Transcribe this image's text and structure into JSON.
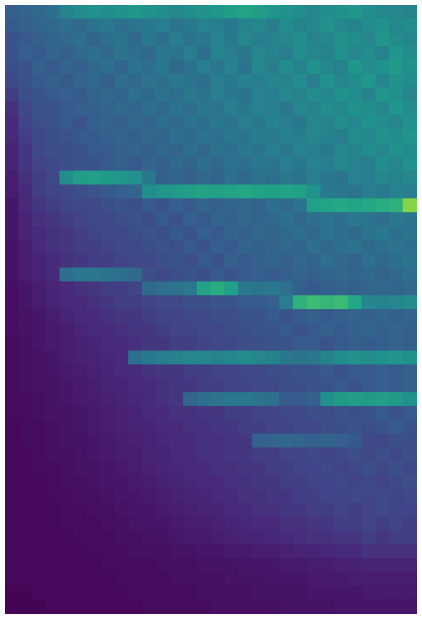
{
  "chart_data": {
    "type": "heatmap",
    "tick_labels": false,
    "zlim": [
      0,
      100
    ],
    "cells": [
      [
        30,
        32,
        34,
        36,
        44,
        48,
        50,
        48,
        50,
        52,
        50,
        48,
        46,
        48,
        50,
        52,
        55,
        58,
        55,
        52,
        50,
        48,
        46,
        48,
        50,
        52,
        48,
        46,
        45,
        44
      ],
      [
        28,
        30,
        32,
        34,
        36,
        34,
        38,
        40,
        36,
        38,
        40,
        42,
        38,
        40,
        44,
        42,
        40,
        44,
        46,
        42,
        48,
        44,
        46,
        50,
        46,
        44,
        48,
        50,
        46,
        48
      ],
      [
        26,
        28,
        30,
        32,
        34,
        36,
        32,
        36,
        38,
        34,
        40,
        36,
        42,
        38,
        40,
        44,
        40,
        46,
        42,
        44,
        46,
        48,
        44,
        46,
        50,
        48,
        46,
        52,
        48,
        46
      ],
      [
        26,
        30,
        28,
        32,
        30,
        34,
        36,
        34,
        38,
        36,
        34,
        40,
        38,
        42,
        36,
        44,
        42,
        40,
        46,
        44,
        42,
        48,
        46,
        44,
        50,
        46,
        48,
        44,
        52,
        48
      ],
      [
        24,
        26,
        30,
        28,
        32,
        30,
        34,
        36,
        32,
        38,
        36,
        40,
        34,
        38,
        42,
        40,
        44,
        38,
        46,
        42,
        48,
        44,
        50,
        46,
        44,
        52,
        48,
        50,
        54,
        50
      ],
      [
        22,
        26,
        28,
        30,
        28,
        32,
        34,
        30,
        36,
        34,
        38,
        36,
        40,
        38,
        36,
        42,
        40,
        44,
        42,
        46,
        44,
        48,
        42,
        50,
        46,
        48,
        52,
        46,
        50,
        48
      ],
      [
        18,
        24,
        26,
        28,
        30,
        28,
        32,
        34,
        32,
        36,
        34,
        38,
        36,
        40,
        38,
        42,
        40,
        38,
        44,
        42,
        46,
        44,
        48,
        46,
        50,
        48,
        44,
        52,
        50,
        46
      ],
      [
        14,
        22,
        26,
        26,
        28,
        30,
        30,
        32,
        34,
        32,
        36,
        34,
        38,
        36,
        40,
        38,
        42,
        40,
        44,
        42,
        40,
        46,
        44,
        48,
        46,
        50,
        48,
        46,
        52,
        48
      ],
      [
        12,
        20,
        24,
        26,
        28,
        26,
        30,
        32,
        30,
        34,
        32,
        36,
        34,
        38,
        36,
        40,
        38,
        42,
        40,
        44,
        42,
        40,
        46,
        44,
        48,
        46,
        50,
        48,
        46,
        50
      ],
      [
        12,
        18,
        22,
        24,
        26,
        28,
        28,
        30,
        32,
        30,
        34,
        32,
        36,
        34,
        38,
        36,
        40,
        38,
        42,
        40,
        44,
        42,
        46,
        44,
        42,
        48,
        46,
        50,
        48,
        52
      ],
      [
        10,
        16,
        22,
        24,
        24,
        26,
        28,
        28,
        30,
        32,
        30,
        34,
        32,
        36,
        34,
        38,
        36,
        40,
        38,
        42,
        40,
        44,
        42,
        40,
        46,
        44,
        48,
        46,
        50,
        48
      ],
      [
        10,
        16,
        20,
        22,
        24,
        26,
        26,
        28,
        30,
        28,
        32,
        30,
        34,
        32,
        36,
        34,
        38,
        36,
        40,
        38,
        42,
        40,
        44,
        42,
        46,
        44,
        42,
        48,
        46,
        50
      ],
      [
        8,
        14,
        18,
        22,
        48,
        55,
        56,
        54,
        52,
        50,
        40,
        30,
        32,
        30,
        34,
        32,
        36,
        34,
        38,
        36,
        40,
        38,
        42,
        40,
        38,
        44,
        42,
        46,
        44,
        46
      ],
      [
        8,
        12,
        18,
        20,
        22,
        24,
        26,
        28,
        30,
        32,
        48,
        52,
        54,
        56,
        58,
        56,
        58,
        60,
        58,
        56,
        58,
        56,
        50,
        40,
        40,
        38,
        42,
        40,
        44,
        42
      ],
      [
        6,
        12,
        16,
        18,
        20,
        22,
        22,
        24,
        26,
        24,
        28,
        26,
        30,
        28,
        32,
        30,
        32,
        34,
        32,
        36,
        34,
        38,
        56,
        58,
        60,
        58,
        60,
        62,
        64,
        82
      ],
      [
        6,
        10,
        14,
        16,
        18,
        20,
        22,
        22,
        24,
        26,
        24,
        28,
        26,
        30,
        28,
        32,
        30,
        34,
        32,
        34,
        36,
        34,
        36,
        38,
        36,
        40,
        38,
        36,
        40,
        38
      ],
      [
        6,
        10,
        12,
        14,
        16,
        18,
        20,
        22,
        22,
        24,
        26,
        24,
        28,
        26,
        30,
        28,
        32,
        30,
        34,
        32,
        34,
        36,
        34,
        38,
        36,
        34,
        38,
        40,
        36,
        38
      ],
      [
        5,
        8,
        12,
        14,
        16,
        18,
        18,
        20,
        22,
        22,
        24,
        26,
        24,
        28,
        26,
        30,
        28,
        32,
        30,
        32,
        34,
        32,
        36,
        34,
        36,
        38,
        34,
        36,
        38,
        36
      ],
      [
        5,
        8,
        10,
        12,
        14,
        16,
        18,
        18,
        20,
        22,
        22,
        24,
        26,
        24,
        28,
        26,
        30,
        28,
        30,
        32,
        30,
        34,
        32,
        36,
        34,
        32,
        36,
        34,
        36,
        38
      ],
      [
        5,
        8,
        10,
        12,
        36,
        40,
        40,
        38,
        36,
        34,
        24,
        22,
        24,
        26,
        24,
        28,
        26,
        28,
        30,
        28,
        30,
        32,
        30,
        32,
        34,
        32,
        34,
        32,
        34,
        36
      ],
      [
        4,
        6,
        8,
        10,
        12,
        14,
        16,
        18,
        18,
        20,
        34,
        36,
        38,
        40,
        58,
        62,
        56,
        40,
        38,
        40,
        36,
        30,
        28,
        30,
        32,
        30,
        32,
        34,
        32,
        34
      ],
      [
        4,
        6,
        8,
        10,
        12,
        12,
        14,
        16,
        18,
        18,
        20,
        22,
        22,
        24,
        24,
        26,
        26,
        28,
        28,
        30,
        42,
        64,
        68,
        66,
        68,
        60,
        46,
        44,
        46,
        48
      ],
      [
        4,
        5,
        6,
        8,
        10,
        12,
        12,
        14,
        16,
        16,
        18,
        20,
        20,
        22,
        22,
        24,
        24,
        26,
        26,
        28,
        26,
        28,
        30,
        28,
        30,
        32,
        30,
        32,
        30,
        32
      ],
      [
        4,
        5,
        6,
        7,
        8,
        10,
        12,
        12,
        14,
        16,
        16,
        18,
        20,
        20,
        22,
        22,
        24,
        24,
        26,
        26,
        28,
        26,
        28,
        30,
        28,
        30,
        32,
        30,
        32,
        30
      ],
      [
        3,
        4,
        6,
        7,
        8,
        9,
        10,
        12,
        12,
        14,
        16,
        16,
        18,
        18,
        20,
        22,
        22,
        24,
        24,
        26,
        26,
        28,
        28,
        26,
        28,
        30,
        28,
        30,
        32,
        30
      ],
      [
        3,
        4,
        5,
        6,
        8,
        9,
        10,
        11,
        12,
        36,
        40,
        42,
        44,
        46,
        46,
        44,
        46,
        48,
        46,
        44,
        40,
        38,
        40,
        44,
        48,
        50,
        48,
        50,
        52,
        50
      ],
      [
        3,
        4,
        5,
        6,
        7,
        8,
        9,
        10,
        12,
        12,
        14,
        16,
        16,
        18,
        18,
        20,
        20,
        22,
        22,
        24,
        24,
        26,
        26,
        28,
        26,
        28,
        28,
        30,
        28,
        30
      ],
      [
        3,
        4,
        5,
        5,
        6,
        7,
        8,
        10,
        10,
        12,
        12,
        14,
        16,
        16,
        18,
        18,
        20,
        20,
        22,
        22,
        24,
        24,
        26,
        26,
        28,
        26,
        28,
        30,
        28,
        30
      ],
      [
        3,
        3,
        4,
        5,
        6,
        7,
        8,
        9,
        10,
        11,
        12,
        14,
        16,
        32,
        36,
        38,
        40,
        40,
        38,
        36,
        28,
        28,
        30,
        50,
        54,
        56,
        54,
        56,
        54,
        50
      ],
      [
        3,
        3,
        4,
        5,
        5,
        6,
        7,
        8,
        9,
        10,
        12,
        12,
        14,
        14,
        16,
        16,
        18,
        18,
        20,
        20,
        22,
        22,
        24,
        24,
        26,
        24,
        26,
        28,
        26,
        28
      ],
      [
        2,
        3,
        3,
        4,
        5,
        6,
        7,
        8,
        9,
        10,
        10,
        12,
        12,
        14,
        14,
        16,
        16,
        18,
        18,
        20,
        20,
        22,
        22,
        24,
        24,
        26,
        24,
        26,
        28,
        26
      ],
      [
        2,
        3,
        3,
        4,
        5,
        5,
        6,
        7,
        8,
        9,
        10,
        11,
        12,
        12,
        14,
        14,
        16,
        16,
        30,
        32,
        34,
        32,
        30,
        32,
        30,
        28,
        22,
        22,
        24,
        24
      ],
      [
        2,
        2,
        3,
        4,
        4,
        5,
        6,
        7,
        8,
        8,
        10,
        10,
        12,
        12,
        14,
        14,
        16,
        16,
        18,
        18,
        20,
        20,
        22,
        20,
        22,
        24,
        22,
        24,
        22,
        24
      ],
      [
        2,
        2,
        3,
        3,
        4,
        5,
        5,
        6,
        7,
        8,
        9,
        10,
        11,
        12,
        12,
        14,
        14,
        16,
        16,
        18,
        18,
        20,
        20,
        22,
        20,
        22,
        24,
        22,
        24,
        22
      ],
      [
        2,
        2,
        2,
        3,
        4,
        4,
        5,
        6,
        6,
        7,
        8,
        9,
        10,
        11,
        12,
        12,
        14,
        14,
        16,
        16,
        18,
        18,
        20,
        20,
        22,
        20,
        22,
        20,
        22,
        24
      ],
      [
        2,
        2,
        2,
        3,
        3,
        4,
        4,
        5,
        6,
        6,
        7,
        8,
        9,
        10,
        10,
        12,
        12,
        14,
        14,
        16,
        16,
        18,
        18,
        20,
        20,
        22,
        20,
        22,
        20,
        22
      ],
      [
        2,
        2,
        2,
        2,
        3,
        3,
        4,
        4,
        5,
        6,
        6,
        7,
        8,
        9,
        10,
        10,
        12,
        12,
        14,
        14,
        16,
        16,
        18,
        18,
        20,
        18,
        20,
        22,
        20,
        20
      ],
      [
        2,
        2,
        2,
        2,
        3,
        3,
        3,
        4,
        4,
        5,
        6,
        6,
        7,
        8,
        8,
        9,
        10,
        11,
        12,
        12,
        14,
        14,
        16,
        16,
        18,
        18,
        20,
        18,
        20,
        18
      ],
      [
        2,
        2,
        2,
        2,
        2,
        3,
        3,
        3,
        4,
        4,
        5,
        5,
        6,
        7,
        7,
        8,
        9,
        10,
        10,
        11,
        12,
        13,
        14,
        14,
        16,
        16,
        18,
        16,
        18,
        18
      ],
      [
        2,
        2,
        2,
        2,
        2,
        2,
        3,
        3,
        3,
        4,
        4,
        4,
        5,
        5,
        6,
        6,
        7,
        7,
        8,
        8,
        9,
        10,
        10,
        11,
        12,
        12,
        14,
        14,
        14,
        14
      ],
      [
        2,
        2,
        2,
        2,
        2,
        2,
        2,
        3,
        3,
        3,
        3,
        4,
        4,
        4,
        5,
        5,
        5,
        6,
        6,
        6,
        7,
        7,
        8,
        8,
        9,
        9,
        10,
        10,
        10,
        10
      ],
      [
        2,
        2,
        2,
        2,
        2,
        2,
        2,
        2,
        3,
        3,
        3,
        3,
        4,
        4,
        4,
        4,
        5,
        5,
        5,
        6,
        6,
        6,
        7,
        7,
        7,
        8,
        8,
        8,
        8,
        8
      ],
      [
        1,
        1,
        2,
        2,
        2,
        2,
        2,
        2,
        2,
        3,
        3,
        3,
        3,
        3,
        4,
        4,
        4,
        4,
        5,
        5,
        5,
        5,
        6,
        6,
        6,
        6,
        7,
        7,
        7,
        7
      ],
      [
        1,
        1,
        1,
        2,
        2,
        2,
        2,
        2,
        2,
        2,
        3,
        3,
        3,
        3,
        3,
        4,
        4,
        4,
        4,
        4,
        5,
        5,
        5,
        5,
        6,
        6,
        6,
        6,
        6,
        6
      ]
    ]
  }
}
